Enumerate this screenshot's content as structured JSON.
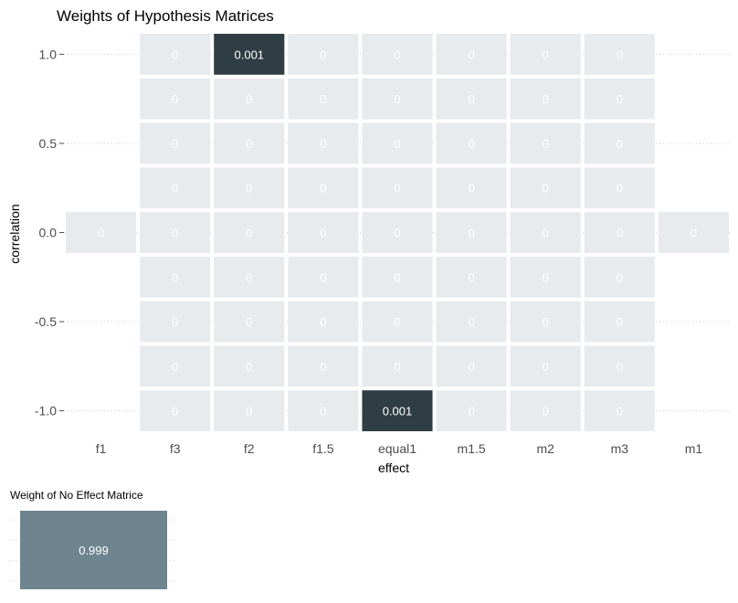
{
  "chart_data": [
    {
      "type": "heatmap",
      "title": "Weights of Hypothesis Matrices",
      "xlabel": "effect",
      "ylabel": "correlation",
      "x_categories": [
        "f1",
        "f3",
        "f2",
        "f1.5",
        "equal1",
        "m1.5",
        "m2",
        "m3",
        "m1"
      ],
      "y_values": [
        1.0,
        0.75,
        0.5,
        0.25,
        0.0,
        -0.25,
        -0.5,
        -0.75,
        -1.0
      ],
      "y_tick_labels": [
        {
          "value": 1.0,
          "label": "1.0"
        },
        {
          "value": 0.5,
          "label": "0.5"
        },
        {
          "value": 0.0,
          "label": "0.0"
        },
        {
          "value": -0.5,
          "label": "-0.5"
        },
        {
          "value": -1.0,
          "label": "-1.0"
        }
      ],
      "low_color": "#e8ebee",
      "high_color": "#2f3d44",
      "grid": true,
      "legend": "none",
      "cells": [
        {
          "x": "f3",
          "y": 1.0,
          "label": "0"
        },
        {
          "x": "f2",
          "y": 1.0,
          "label": "0.001"
        },
        {
          "x": "f1.5",
          "y": 1.0,
          "label": "0"
        },
        {
          "x": "equal1",
          "y": 1.0,
          "label": "0"
        },
        {
          "x": "m1.5",
          "y": 1.0,
          "label": "0"
        },
        {
          "x": "m2",
          "y": 1.0,
          "label": "0"
        },
        {
          "x": "m3",
          "y": 1.0,
          "label": "0"
        },
        {
          "x": "f3",
          "y": 0.75,
          "label": "0"
        },
        {
          "x": "f2",
          "y": 0.75,
          "label": "0"
        },
        {
          "x": "f1.5",
          "y": 0.75,
          "label": "0"
        },
        {
          "x": "equal1",
          "y": 0.75,
          "label": "0"
        },
        {
          "x": "m1.5",
          "y": 0.75,
          "label": "0"
        },
        {
          "x": "m2",
          "y": 0.75,
          "label": "0"
        },
        {
          "x": "m3",
          "y": 0.75,
          "label": "0"
        },
        {
          "x": "f3",
          "y": 0.5,
          "label": "0"
        },
        {
          "x": "f2",
          "y": 0.5,
          "label": "0"
        },
        {
          "x": "f1.5",
          "y": 0.5,
          "label": "0"
        },
        {
          "x": "equal1",
          "y": 0.5,
          "label": "0"
        },
        {
          "x": "m1.5",
          "y": 0.5,
          "label": "0"
        },
        {
          "x": "m2",
          "y": 0.5,
          "label": "0"
        },
        {
          "x": "m3",
          "y": 0.5,
          "label": "0"
        },
        {
          "x": "f3",
          "y": 0.25,
          "label": "0"
        },
        {
          "x": "f2",
          "y": 0.25,
          "label": "0"
        },
        {
          "x": "f1.5",
          "y": 0.25,
          "label": "0"
        },
        {
          "x": "equal1",
          "y": 0.25,
          "label": "0"
        },
        {
          "x": "m1.5",
          "y": 0.25,
          "label": "0"
        },
        {
          "x": "m2",
          "y": 0.25,
          "label": "0"
        },
        {
          "x": "m3",
          "y": 0.25,
          "label": "0"
        },
        {
          "x": "f1",
          "y": 0.0,
          "label": "0"
        },
        {
          "x": "f3",
          "y": 0.0,
          "label": "0"
        },
        {
          "x": "f2",
          "y": 0.0,
          "label": "0"
        },
        {
          "x": "f1.5",
          "y": 0.0,
          "label": "0"
        },
        {
          "x": "equal1",
          "y": 0.0,
          "label": "0"
        },
        {
          "x": "m1.5",
          "y": 0.0,
          "label": "0"
        },
        {
          "x": "m2",
          "y": 0.0,
          "label": "0"
        },
        {
          "x": "m3",
          "y": 0.0,
          "label": "0"
        },
        {
          "x": "m1",
          "y": 0.0,
          "label": "0"
        },
        {
          "x": "f3",
          "y": -0.25,
          "label": "0"
        },
        {
          "x": "f2",
          "y": -0.25,
          "label": "0"
        },
        {
          "x": "f1.5",
          "y": -0.25,
          "label": "0"
        },
        {
          "x": "equal1",
          "y": -0.25,
          "label": "0"
        },
        {
          "x": "m1.5",
          "y": -0.25,
          "label": "0"
        },
        {
          "x": "m2",
          "y": -0.25,
          "label": "0"
        },
        {
          "x": "m3",
          "y": -0.25,
          "label": "0"
        },
        {
          "x": "f3",
          "y": -0.5,
          "label": "0"
        },
        {
          "x": "f2",
          "y": -0.5,
          "label": "0"
        },
        {
          "x": "f1.5",
          "y": -0.5,
          "label": "0"
        },
        {
          "x": "equal1",
          "y": -0.5,
          "label": "0"
        },
        {
          "x": "m1.5",
          "y": -0.5,
          "label": "0"
        },
        {
          "x": "m2",
          "y": -0.5,
          "label": "0"
        },
        {
          "x": "m3",
          "y": -0.5,
          "label": "0"
        },
        {
          "x": "f3",
          "y": -0.75,
          "label": "0"
        },
        {
          "x": "f2",
          "y": -0.75,
          "label": "0"
        },
        {
          "x": "f1.5",
          "y": -0.75,
          "label": "0"
        },
        {
          "x": "equal1",
          "y": -0.75,
          "label": "0"
        },
        {
          "x": "m1.5",
          "y": -0.75,
          "label": "0"
        },
        {
          "x": "m2",
          "y": -0.75,
          "label": "0"
        },
        {
          "x": "m3",
          "y": -0.75,
          "label": "0"
        },
        {
          "x": "f3",
          "y": -1.0,
          "label": "0"
        },
        {
          "x": "f2",
          "y": -1.0,
          "label": "0"
        },
        {
          "x": "f1.5",
          "y": -1.0,
          "label": "0"
        },
        {
          "x": "equal1",
          "y": -1.0,
          "label": "0.001"
        },
        {
          "x": "m1.5",
          "y": -1.0,
          "label": "0"
        },
        {
          "x": "m2",
          "y": -1.0,
          "label": "0"
        },
        {
          "x": "m3",
          "y": -1.0,
          "label": "0"
        }
      ]
    },
    {
      "type": "heatmap",
      "title": "Weight of No Effect Matrice",
      "cells": [
        {
          "label": "0.999"
        }
      ],
      "color": "#6e8590",
      "grid": true
    }
  ]
}
